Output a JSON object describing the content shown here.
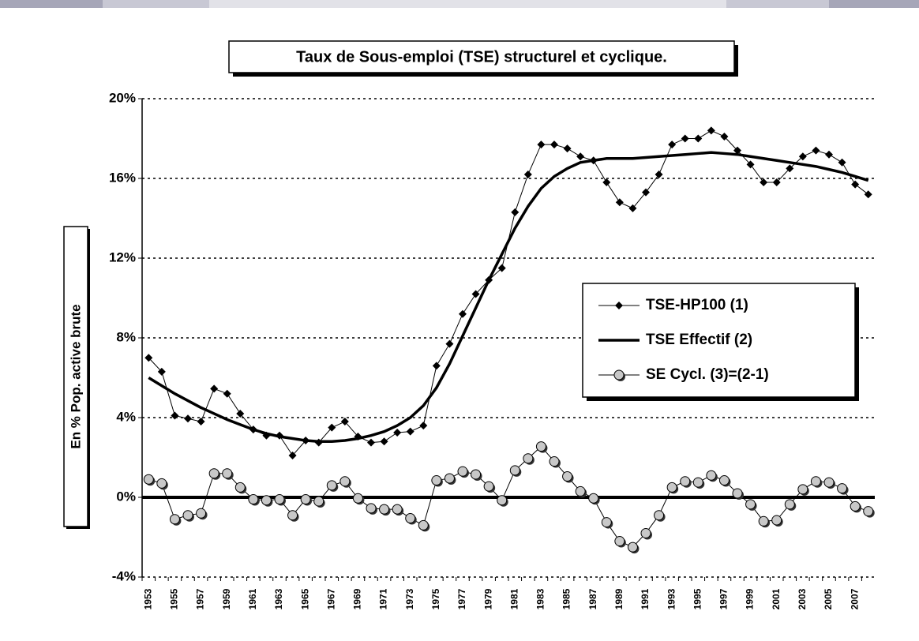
{
  "chart_data": {
    "type": "line",
    "title": "Taux de Sous-emploi (TSE) structurel et cyclique.",
    "y_label": "En % Pop. active brute",
    "categories": [
      "1953",
      null,
      "1955",
      null,
      "1957",
      null,
      "1959",
      null,
      "1961",
      null,
      "1963",
      null,
      "1965",
      null,
      "1967",
      null,
      "1969",
      null,
      "1971",
      null,
      "1973",
      null,
      "1975",
      null,
      "1977",
      null,
      "1979",
      null,
      "1981",
      null,
      "1983",
      null,
      "1985",
      null,
      "1987",
      null,
      "1989",
      null,
      "1991",
      null,
      "1993",
      null,
      "1995",
      null,
      "1997",
      null,
      "1999",
      null,
      "2001",
      null,
      "2003",
      null,
      "2005",
      null,
      "2007",
      null
    ],
    "series": [
      {
        "name": "TSE-HP100 (1)",
        "color": "#000000",
        "marker": "diamond",
        "width": 1,
        "values": [
          7.0,
          6.3,
          4.1,
          3.95,
          3.8,
          5.45,
          5.2,
          4.2,
          3.4,
          3.1,
          3.1,
          2.1,
          2.85,
          2.75,
          3.5,
          3.8,
          3.05,
          2.75,
          2.8,
          3.25,
          3.3,
          3.6,
          6.6,
          7.7,
          9.2,
          10.2,
          10.9,
          11.5,
          14.3,
          16.2,
          17.7,
          17.7,
          17.5,
          17.1,
          16.9,
          15.8,
          14.8,
          14.5,
          15.3,
          16.2,
          17.7,
          18.0,
          18.0,
          18.4,
          18.1,
          17.4,
          16.7,
          15.8,
          15.8,
          16.5,
          17.1,
          17.4,
          17.2,
          16.8,
          15.7,
          15.2
        ]
      },
      {
        "name": "TSE Effectif (2)",
        "color": "#000000",
        "marker": "none",
        "width": 3.5,
        "values": [
          6.0,
          5.6,
          5.2,
          4.85,
          4.5,
          4.2,
          3.9,
          3.65,
          3.4,
          3.2,
          3.05,
          2.95,
          2.85,
          2.8,
          2.8,
          2.85,
          2.95,
          3.1,
          3.3,
          3.6,
          4.0,
          4.6,
          5.5,
          6.7,
          8.1,
          9.5,
          10.9,
          12.2,
          13.5,
          14.6,
          15.5,
          16.1,
          16.5,
          16.8,
          16.9,
          17.0,
          17.0,
          17.0,
          17.05,
          17.1,
          17.15,
          17.2,
          17.25,
          17.3,
          17.25,
          17.2,
          17.1,
          17.0,
          16.9,
          16.8,
          16.7,
          16.6,
          16.45,
          16.3,
          16.1,
          15.9
        ]
      },
      {
        "name": "SE Cycl. (3)=(2-1)",
        "color": "#000000",
        "marker": "circle",
        "width": 1,
        "values": [
          0.9,
          0.7,
          -1.1,
          -0.9,
          -0.8,
          1.2,
          1.2,
          0.5,
          -0.1,
          -0.15,
          -0.1,
          -0.9,
          -0.1,
          -0.2,
          0.6,
          0.8,
          -0.05,
          -0.55,
          -0.6,
          -0.6,
          -1.05,
          -1.4,
          0.85,
          0.95,
          1.3,
          1.15,
          0.55,
          -0.15,
          1.35,
          1.95,
          2.55,
          1.8,
          1.05,
          0.3,
          -0.05,
          -1.25,
          -2.2,
          -2.5,
          -1.8,
          -0.9,
          0.5,
          0.8,
          0.75,
          1.1,
          0.85,
          0.2,
          -0.35,
          -1.2,
          -1.15,
          -0.35,
          0.4,
          0.8,
          0.75,
          0.45,
          -0.45,
          -0.7
        ]
      }
    ],
    "ylim": [
      -4,
      20
    ],
    "yticks": [
      {
        "value": -4,
        "label": "-4%"
      },
      {
        "value": 0,
        "label": "0%"
      },
      {
        "value": 4,
        "label": "4%"
      },
      {
        "value": 8,
        "label": "8%"
      },
      {
        "value": 12,
        "label": "12%"
      },
      {
        "value": 16,
        "label": "16%"
      },
      {
        "value": 20,
        "label": "20%"
      }
    ],
    "grid": true
  }
}
